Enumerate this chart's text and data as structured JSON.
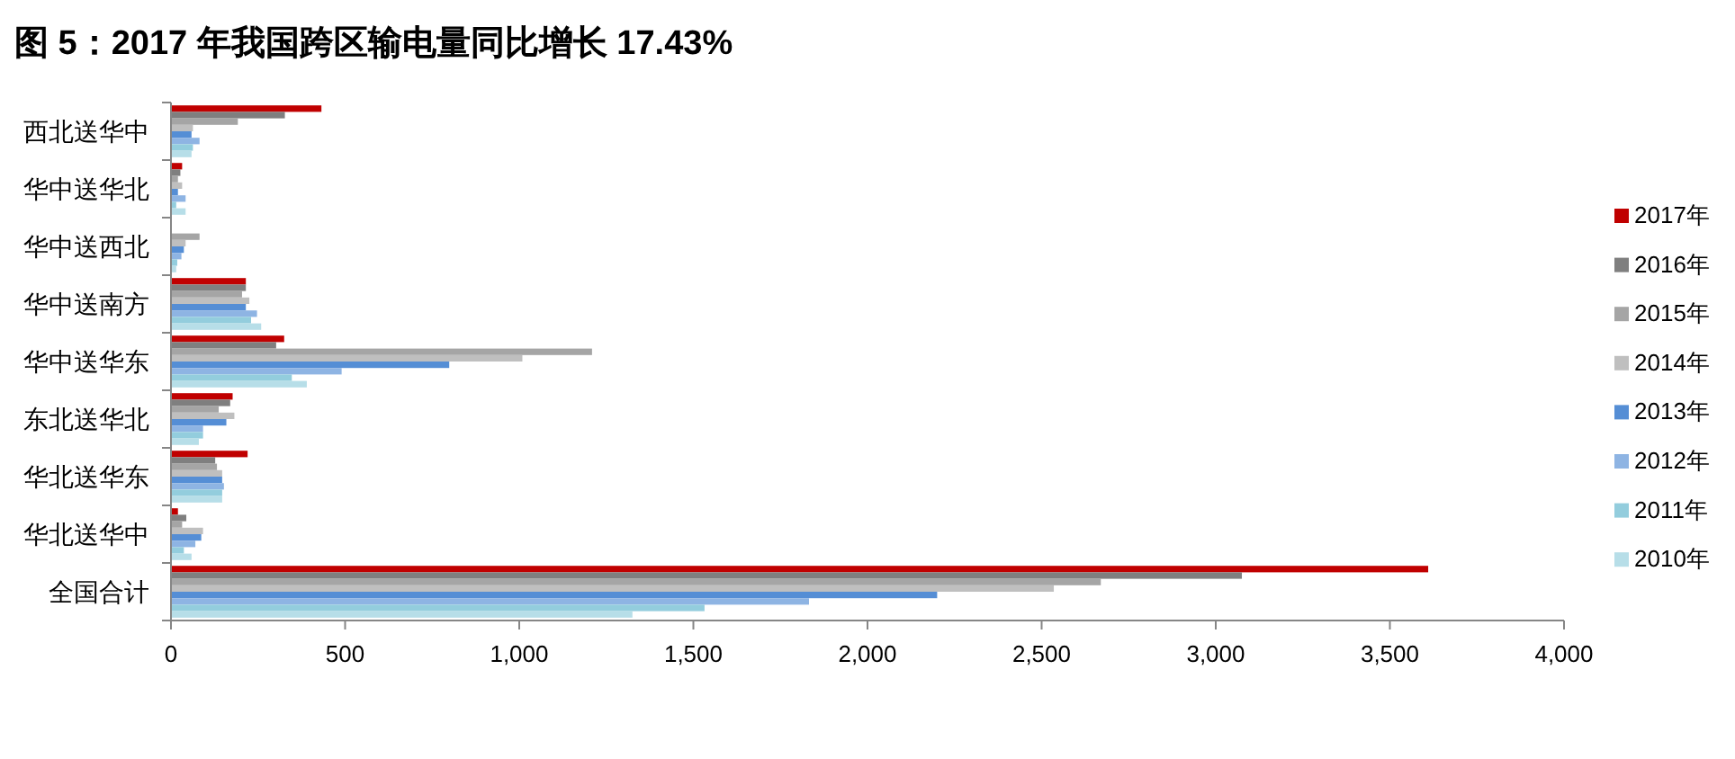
{
  "chart_data": {
    "type": "bar",
    "orientation": "horizontal",
    "title": "图 5：2017 年我国跨区输电量同比增长 17.43%",
    "categories": [
      "西北送华中",
      "华中送华北",
      "华中送西北",
      "华中送南方",
      "华中送华东",
      "东北送华北",
      "华北送华东",
      "华北送华中",
      "全国合计"
    ],
    "series": [
      {
        "name": "2017年",
        "color": "#c00000",
        "values": [
          432,
          32,
          null,
          215,
          325,
          177,
          220,
          20,
          3610
        ]
      },
      {
        "name": "2016年",
        "color": "#7f7f7f",
        "values": [
          327,
          27,
          null,
          215,
          302,
          170,
          127,
          44,
          3075
        ]
      },
      {
        "name": "2015年",
        "color": "#a5a5a5",
        "values": [
          192,
          20,
          82,
          204,
          1209,
          137,
          132,
          32,
          2670
        ]
      },
      {
        "name": "2014年",
        "color": "#bfbfbf",
        "values": [
          63,
          32,
          42,
          225,
          1009,
          182,
          147,
          92,
          2535
        ]
      },
      {
        "name": "2013年",
        "color": "#558ed5",
        "values": [
          59,
          20,
          37,
          215,
          799,
          159,
          147,
          87,
          2200
        ]
      },
      {
        "name": "2012年",
        "color": "#8eb4e3",
        "values": [
          82,
          42,
          30,
          247,
          490,
          92,
          152,
          70,
          1832
        ]
      },
      {
        "name": "2011年",
        "color": "#93cddd",
        "values": [
          63,
          15,
          18,
          230,
          347,
          92,
          147,
          37,
          1532
        ]
      },
      {
        "name": "2010年",
        "color": "#b7dee8",
        "values": [
          59,
          42,
          15,
          259,
          390,
          80,
          147,
          59,
          1325
        ]
      }
    ],
    "xlim": [
      0,
      4000
    ],
    "xticks": [
      0,
      {
        "value": 500,
        "label": "500"
      },
      {
        "value": 1000,
        "label": "1,000"
      },
      {
        "value": 1500,
        "label": "1,500"
      },
      {
        "value": 2000,
        "label": "2,000"
      },
      {
        "value": 2500,
        "label": "2,500"
      },
      {
        "value": 3000,
        "label": "3,000"
      },
      {
        "value": 3500,
        "label": "3,500"
      },
      {
        "value": 4000,
        "label": "4,000"
      }
    ],
    "legend": "right",
    "grid": false
  }
}
